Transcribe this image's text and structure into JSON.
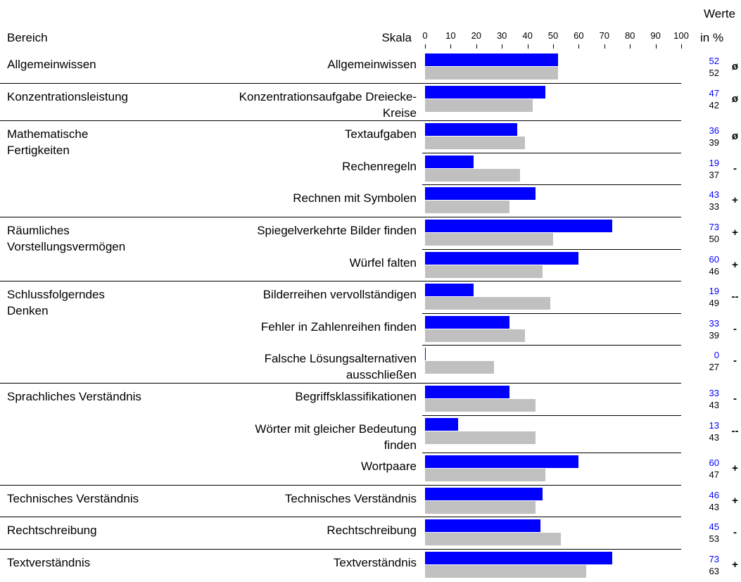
{
  "chart_data": {
    "type": "bar",
    "orientation": "horizontal",
    "header": {
      "area": "Bereich",
      "scale": "Skala",
      "values_title": "Werte",
      "values_unit": "in %"
    },
    "xlim": [
      0,
      100
    ],
    "xticks": [
      0,
      10,
      20,
      30,
      40,
      50,
      60,
      70,
      80,
      90,
      100
    ],
    "value_color": "#0000ff",
    "reference_color": "#c0c0c0",
    "groups": [
      {
        "name": "Allgemeinwissen",
        "scales": [
          {
            "label": "Allgemeinwissen",
            "value": 52,
            "reference": 52,
            "rating": "ø"
          }
        ]
      },
      {
        "name": "Konzentrationsleistung",
        "scales": [
          {
            "label": "Konzentrationsaufgabe Dreiecke-\nKreise",
            "value": 47,
            "reference": 42,
            "rating": "ø"
          }
        ]
      },
      {
        "name": "Mathematische\nFertigkeiten",
        "scales": [
          {
            "label": "Textaufgaben",
            "value": 36,
            "reference": 39,
            "rating": "ø"
          },
          {
            "label": "Rechenregeln",
            "value": 19,
            "reference": 37,
            "rating": "-"
          },
          {
            "label": "Rechnen mit Symbolen",
            "value": 43,
            "reference": 33,
            "rating": "+"
          }
        ]
      },
      {
        "name": "Räumliches\nVorstellungsvermögen",
        "scales": [
          {
            "label": "Spiegelverkehrte Bilder finden",
            "value": 73,
            "reference": 50,
            "rating": "+"
          },
          {
            "label": "Würfel falten",
            "value": 60,
            "reference": 46,
            "rating": "+"
          }
        ]
      },
      {
        "name": "Schlussfolgerndes\nDenken",
        "scales": [
          {
            "label": "Bilderreihen vervollständigen",
            "value": 19,
            "reference": 49,
            "rating": "--"
          },
          {
            "label": "Fehler in Zahlenreihen finden",
            "value": 33,
            "reference": 39,
            "rating": "-"
          },
          {
            "label": "Falsche Lösungsalternativen\nausschließen",
            "value": 0,
            "reference": 27,
            "rating": "-"
          }
        ]
      },
      {
        "name": "Sprachliches Verständnis",
        "scales": [
          {
            "label": "Begriffsklassifikationen",
            "value": 33,
            "reference": 43,
            "rating": "-"
          },
          {
            "label": "Wörter mit gleicher Bedeutung\nfinden",
            "value": 13,
            "reference": 43,
            "rating": "--"
          },
          {
            "label": "Wortpaare",
            "value": 60,
            "reference": 47,
            "rating": "+"
          }
        ]
      },
      {
        "name": "Technisches Verständnis",
        "scales": [
          {
            "label": "Technisches Verständnis",
            "value": 46,
            "reference": 43,
            "rating": "+"
          }
        ]
      },
      {
        "name": "Rechtschreibung",
        "scales": [
          {
            "label": "Rechtschreibung",
            "value": 45,
            "reference": 53,
            "rating": "-"
          }
        ]
      },
      {
        "name": "Textverständnis",
        "scales": [
          {
            "label": "Textverständnis",
            "value": 73,
            "reference": 63,
            "rating": "+"
          }
        ]
      }
    ]
  }
}
